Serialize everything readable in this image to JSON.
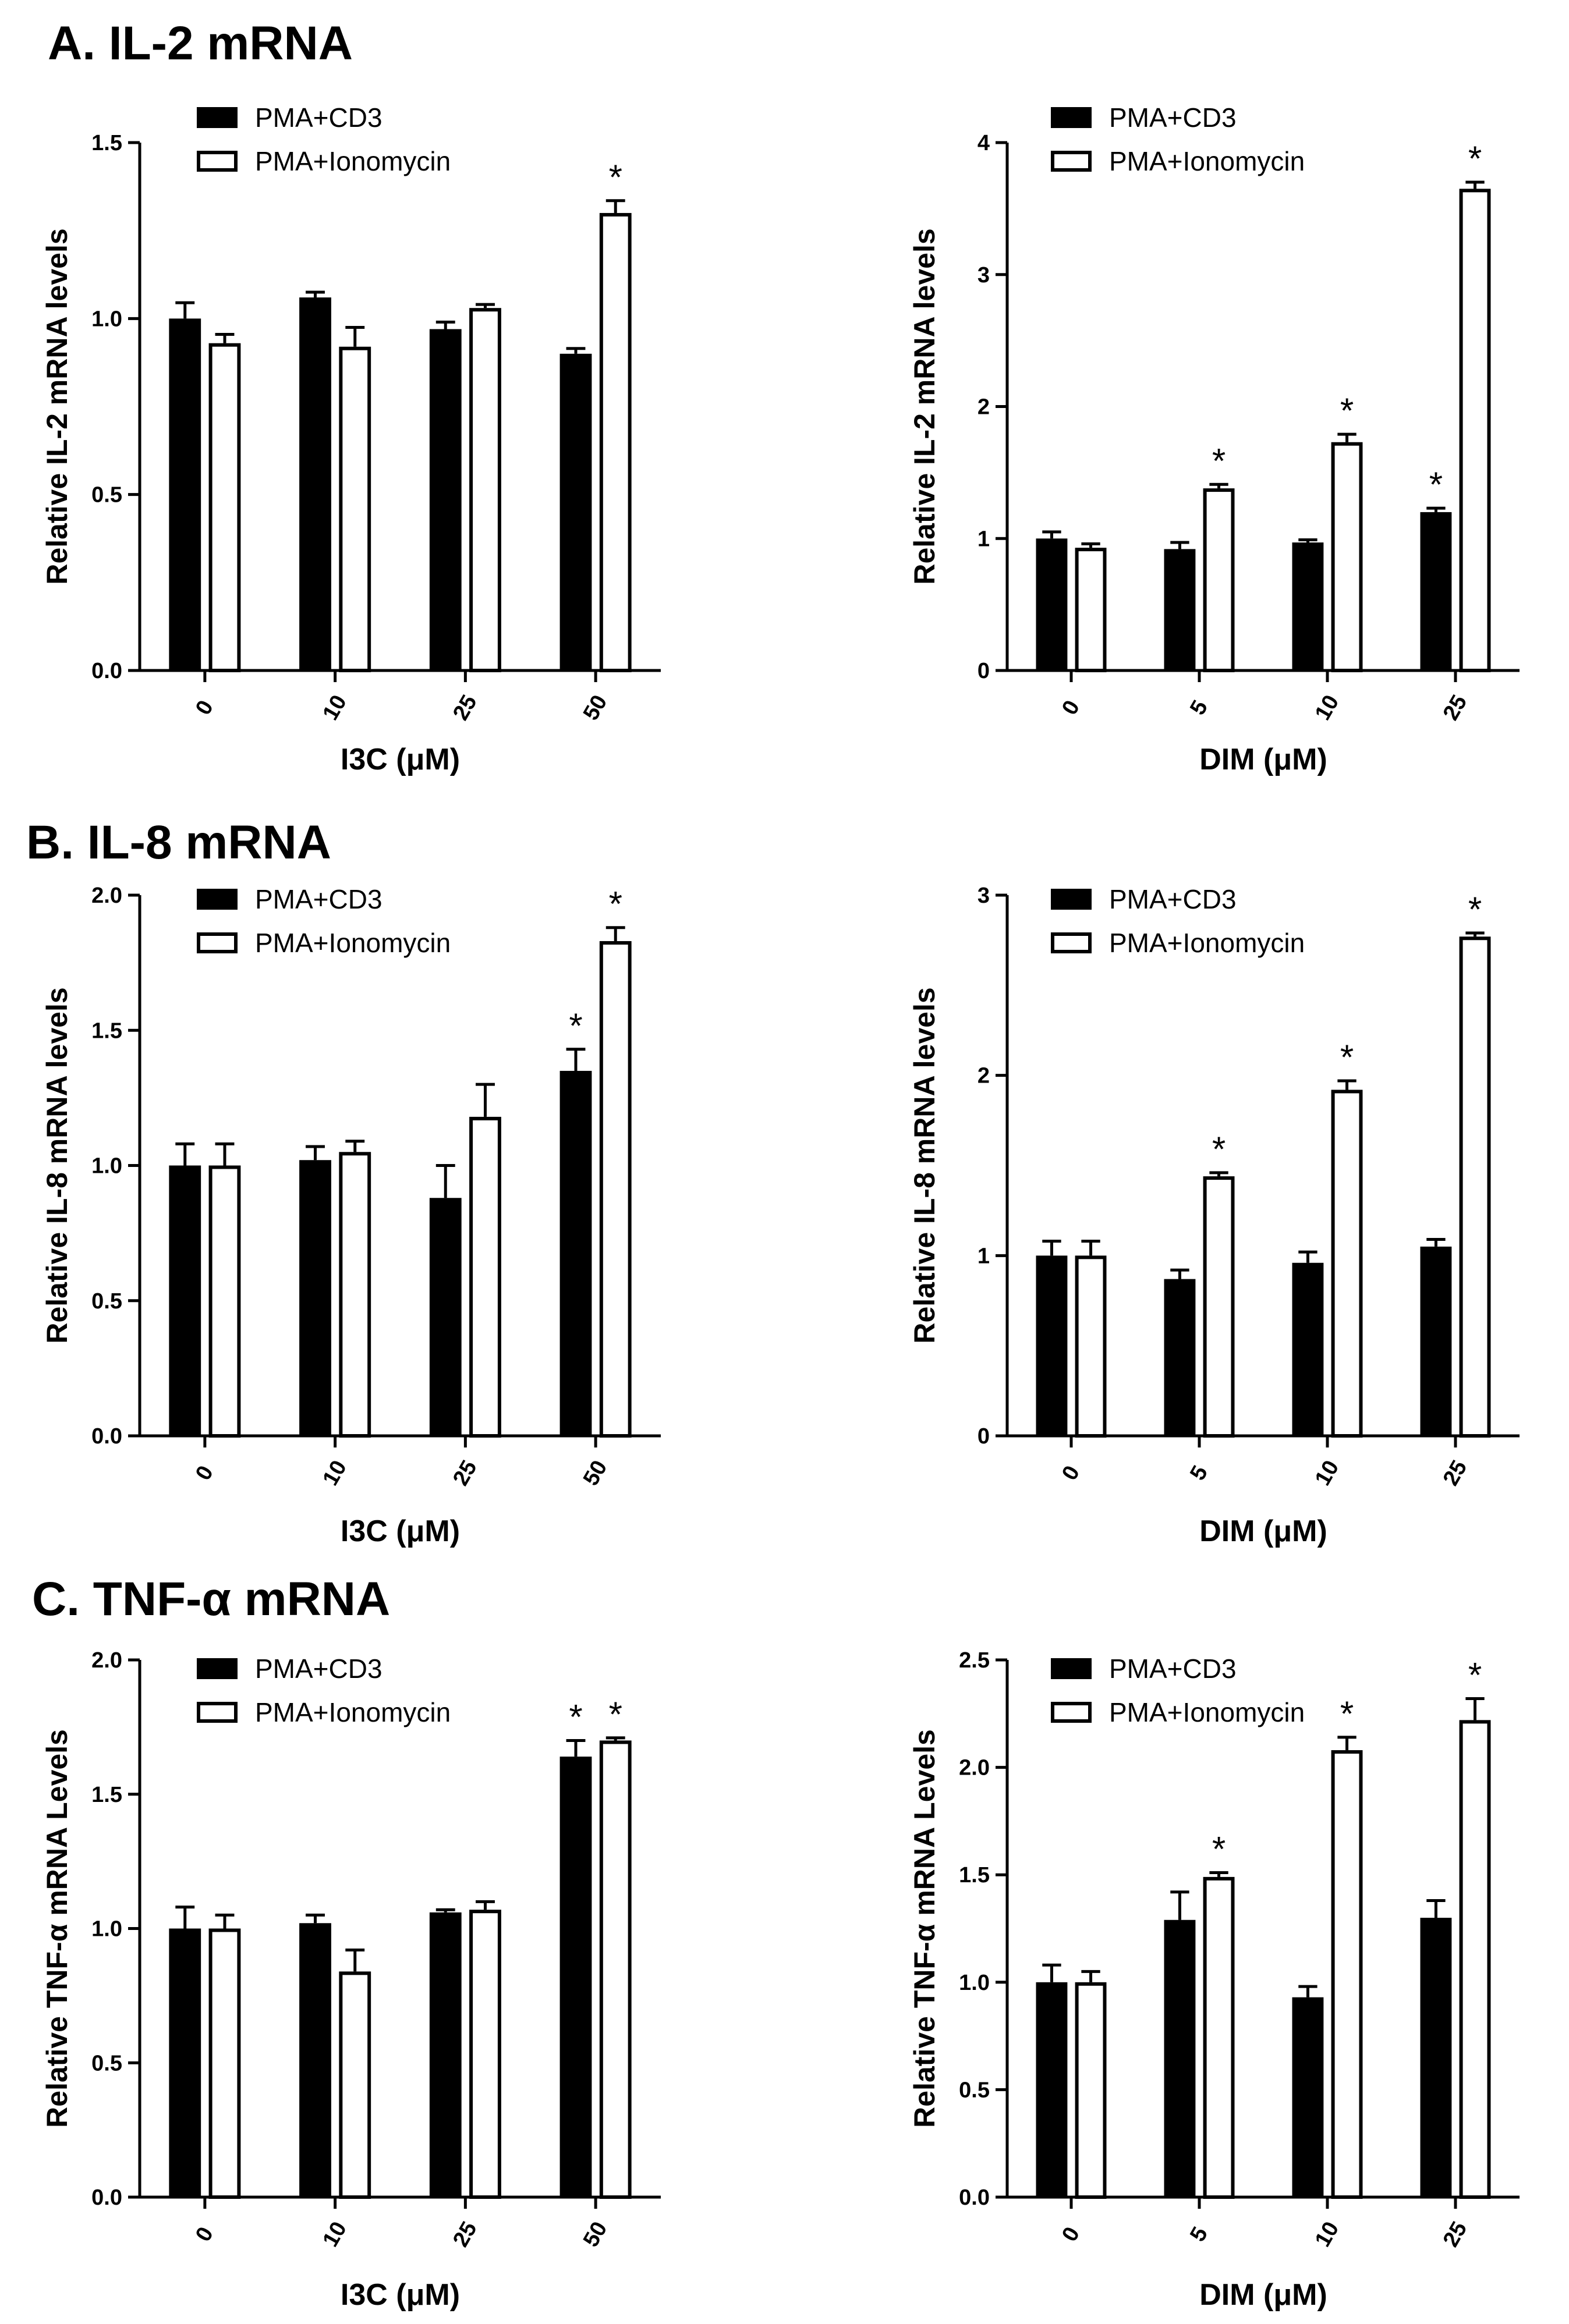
{
  "sections": [
    {
      "title": "A. IL-2 mRNA"
    },
    {
      "title": "B. IL-8 mRNA"
    },
    {
      "title": "C. TNF-α mRNA"
    }
  ],
  "chart_data": [
    {
      "type": "bar",
      "section": 0,
      "side": "left",
      "xlabel": "I3C (μM)",
      "ylabel": "Relative IL-2 mRNA levels",
      "categories": [
        "0",
        "10",
        "25",
        "50"
      ],
      "ylim": [
        0,
        1.5
      ],
      "yticks": [
        0.0,
        0.5,
        1.0,
        1.5
      ],
      "ytick_labels": [
        "0.0",
        "0.5",
        "1.0",
        "1.5"
      ],
      "legend": [
        "PMA+CD3",
        "PMA+Ionomycin"
      ],
      "series": [
        {
          "name": "PMA+CD3",
          "fill": "#000000",
          "values": [
            1.0,
            1.06,
            0.97,
            0.9
          ],
          "errors": [
            0.045,
            0.015,
            0.02,
            0.015
          ],
          "sig": [
            false,
            false,
            false,
            false
          ]
        },
        {
          "name": "PMA+Ionomycin",
          "fill": "#ffffff",
          "values": [
            0.93,
            0.92,
            1.03,
            1.3
          ],
          "errors": [
            0.025,
            0.055,
            0.01,
            0.035
          ],
          "sig": [
            false,
            false,
            false,
            true
          ]
        }
      ]
    },
    {
      "type": "bar",
      "section": 0,
      "side": "right",
      "xlabel": "DIM (μM)",
      "ylabel": "Relative IL-2 mRNA levels",
      "categories": [
        "0",
        "5",
        "10",
        "25"
      ],
      "ylim": [
        0,
        4
      ],
      "yticks": [
        0,
        1,
        2,
        3,
        4
      ],
      "ytick_labels": [
        "0",
        "1",
        "2",
        "3",
        "4"
      ],
      "legend": [
        "PMA+CD3",
        "PMA+Ionomycin"
      ],
      "series": [
        {
          "name": "PMA+CD3",
          "fill": "#000000",
          "values": [
            1.0,
            0.92,
            0.97,
            1.2
          ],
          "errors": [
            0.05,
            0.05,
            0.02,
            0.03
          ],
          "sig": [
            false,
            false,
            false,
            true
          ]
        },
        {
          "name": "PMA+Ionomycin",
          "fill": "#ffffff",
          "values": [
            0.93,
            1.38,
            1.73,
            3.65
          ],
          "errors": [
            0.03,
            0.03,
            0.06,
            0.05
          ],
          "sig": [
            false,
            true,
            true,
            true
          ]
        }
      ]
    },
    {
      "type": "bar",
      "section": 1,
      "side": "left",
      "xlabel": "I3C (μM)",
      "ylabel": "Relative IL-8 mRNA levels",
      "categories": [
        "0",
        "10",
        "25",
        "50"
      ],
      "ylim": [
        0,
        2.0
      ],
      "yticks": [
        0.0,
        0.5,
        1.0,
        1.5,
        2.0
      ],
      "ytick_labels": [
        "0.0",
        "0.5",
        "1.0",
        "1.5",
        "2.0"
      ],
      "legend": [
        "PMA+CD3",
        "PMA+Ionomycin"
      ],
      "series": [
        {
          "name": "PMA+CD3",
          "fill": "#000000",
          "values": [
            1.0,
            1.02,
            0.88,
            1.35
          ],
          "errors": [
            0.08,
            0.05,
            0.12,
            0.08
          ],
          "sig": [
            false,
            false,
            false,
            true
          ]
        },
        {
          "name": "PMA+Ionomycin",
          "fill": "#ffffff",
          "values": [
            1.0,
            1.05,
            1.18,
            1.83
          ],
          "errors": [
            0.08,
            0.04,
            0.12,
            0.05
          ],
          "sig": [
            false,
            false,
            false,
            true
          ]
        }
      ]
    },
    {
      "type": "bar",
      "section": 1,
      "side": "right",
      "xlabel": "DIM (μM)",
      "ylabel": "Relative IL-8 mRNA levels",
      "categories": [
        "0",
        "5",
        "10",
        "25"
      ],
      "ylim": [
        0,
        3
      ],
      "yticks": [
        0,
        1,
        2,
        3
      ],
      "ytick_labels": [
        "0",
        "1",
        "2",
        "3"
      ],
      "legend": [
        "PMA+CD3",
        "PMA+Ionomycin"
      ],
      "series": [
        {
          "name": "PMA+CD3",
          "fill": "#000000",
          "values": [
            1.0,
            0.87,
            0.96,
            1.05
          ],
          "errors": [
            0.08,
            0.05,
            0.06,
            0.04
          ],
          "sig": [
            false,
            false,
            false,
            false
          ]
        },
        {
          "name": "PMA+Ionomycin",
          "fill": "#ffffff",
          "values": [
            1.0,
            1.44,
            1.92,
            2.77
          ],
          "errors": [
            0.08,
            0.02,
            0.05,
            0.02
          ],
          "sig": [
            false,
            true,
            true,
            true
          ]
        }
      ]
    },
    {
      "type": "bar",
      "section": 2,
      "side": "left",
      "xlabel": "I3C (μM)",
      "ylabel": "Relative TNF-α mRNA Levels",
      "categories": [
        "0",
        "10",
        "25",
        "50"
      ],
      "ylim": [
        0,
        2.0
      ],
      "yticks": [
        0.0,
        0.5,
        1.0,
        1.5,
        2.0
      ],
      "ytick_labels": [
        "0.0",
        "0.5",
        "1.0",
        "1.5",
        "2.0"
      ],
      "legend": [
        "PMA+CD3",
        "PMA+Ionomycin"
      ],
      "series": [
        {
          "name": "PMA+CD3",
          "fill": "#000000",
          "values": [
            1.0,
            1.02,
            1.06,
            1.64
          ],
          "errors": [
            0.08,
            0.03,
            0.01,
            0.06
          ],
          "sig": [
            false,
            false,
            false,
            true
          ]
        },
        {
          "name": "PMA+Ionomycin",
          "fill": "#ffffff",
          "values": [
            1.0,
            0.84,
            1.07,
            1.7
          ],
          "errors": [
            0.05,
            0.08,
            0.03,
            0.01
          ],
          "sig": [
            false,
            false,
            false,
            true
          ]
        }
      ]
    },
    {
      "type": "bar",
      "section": 2,
      "side": "right",
      "xlabel": "DIM (μM)",
      "ylabel": "Relative TNF-α mRNA Levels",
      "categories": [
        "0",
        "5",
        "10",
        "25"
      ],
      "ylim": [
        0,
        2.5
      ],
      "yticks": [
        0.0,
        0.5,
        1.0,
        1.5,
        2.0,
        2.5
      ],
      "ytick_labels": [
        "0.0",
        "0.5",
        "1.0",
        "1.5",
        "2.0",
        "2.5"
      ],
      "legend": [
        "PMA+CD3",
        "PMA+Ionomycin"
      ],
      "series": [
        {
          "name": "PMA+CD3",
          "fill": "#000000",
          "values": [
            1.0,
            1.29,
            0.93,
            1.3
          ],
          "errors": [
            0.08,
            0.13,
            0.05,
            0.08
          ],
          "sig": [
            false,
            false,
            false,
            false
          ]
        },
        {
          "name": "PMA+Ionomycin",
          "fill": "#ffffff",
          "values": [
            1.0,
            1.49,
            2.08,
            2.22
          ],
          "errors": [
            0.05,
            0.02,
            0.06,
            0.1
          ],
          "sig": [
            false,
            true,
            true,
            true
          ]
        }
      ]
    }
  ],
  "significance_marker": "*"
}
